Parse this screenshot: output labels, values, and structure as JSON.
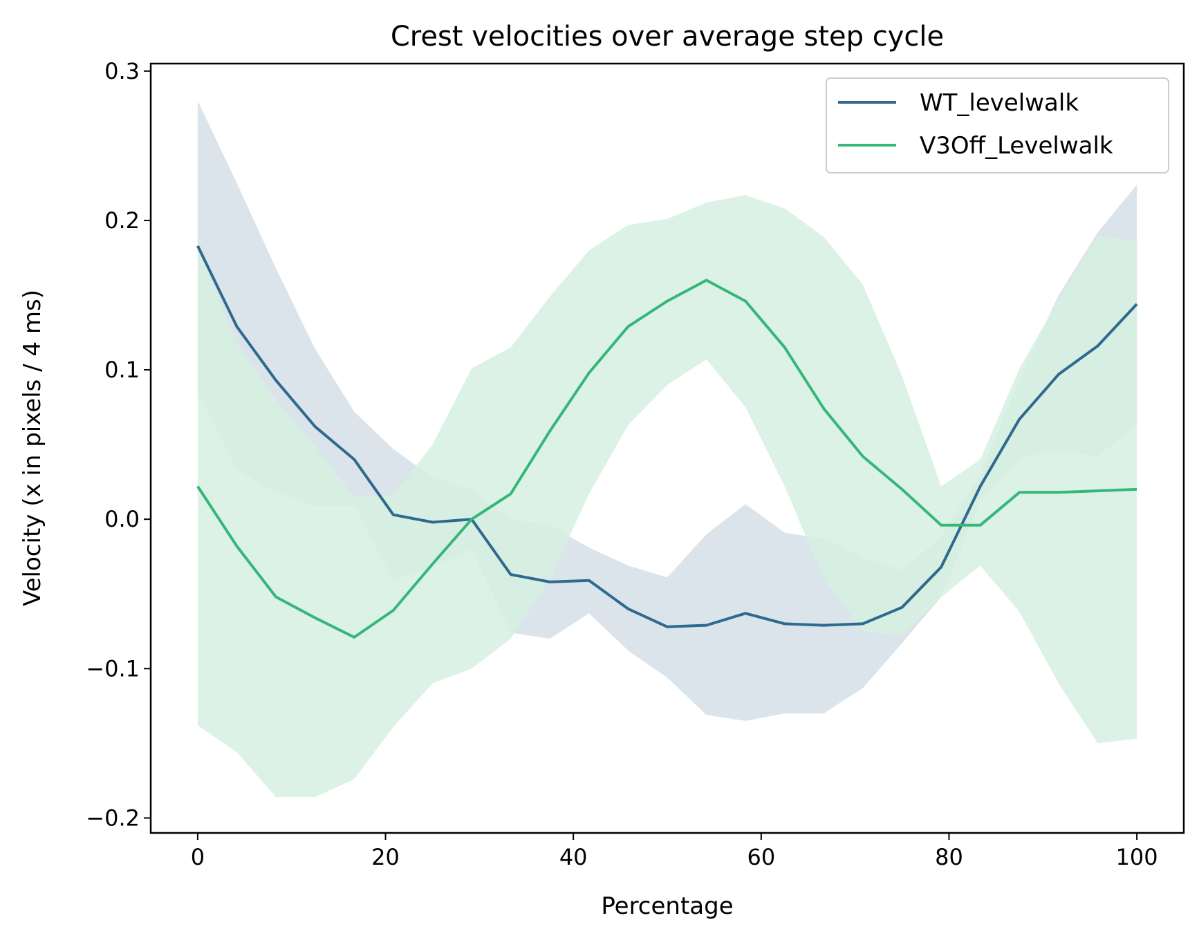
{
  "chart_data": {
    "type": "line",
    "title": "Crest velocities over average step cycle",
    "xlabel": "Percentage",
    "ylabel": "Velocity (x in pixels / 4 ms)",
    "xlim": [
      -5,
      105
    ],
    "ylim": [
      -0.21,
      0.305
    ],
    "x_ticks": [
      0,
      20,
      40,
      60,
      80,
      100
    ],
    "x_tick_labels": [
      "0",
      "20",
      "40",
      "60",
      "80",
      "100"
    ],
    "y_ticks": [
      -0.2,
      -0.1,
      0.0,
      0.1,
      0.2,
      0.3
    ],
    "y_tick_labels": [
      "−0.2",
      "−0.1",
      "0.0",
      "0.1",
      "0.2",
      "0.3"
    ],
    "grid": false,
    "legend_position": "top-right",
    "x": [
      0,
      4.17,
      8.33,
      12.5,
      16.67,
      20.83,
      25,
      29.17,
      33.33,
      37.5,
      41.67,
      45.83,
      50,
      54.17,
      58.33,
      62.5,
      66.67,
      70.83,
      75,
      79.17,
      83.33,
      87.5,
      91.67,
      95.83,
      100
    ],
    "series": [
      {
        "name": "WT_levelwalk",
        "color": "#2e6a8e",
        "band_color": "#d5dfe8",
        "values": [
          0.183,
          0.129,
          0.093,
          0.062,
          0.04,
          0.003,
          -0.002,
          0.0,
          -0.037,
          -0.042,
          -0.041,
          -0.06,
          -0.072,
          -0.071,
          -0.063,
          -0.07,
          -0.071,
          -0.07,
          -0.059,
          -0.032,
          0.022,
          0.067,
          0.097,
          0.116,
          0.144
        ],
        "lower": [
          0.085,
          0.033,
          0.018,
          0.009,
          0.009,
          -0.041,
          -0.032,
          -0.02,
          -0.076,
          -0.08,
          -0.063,
          -0.088,
          -0.106,
          -0.131,
          -0.135,
          -0.13,
          -0.13,
          -0.113,
          -0.083,
          -0.052,
          0.012,
          0.041,
          0.046,
          0.042,
          0.064
        ],
        "upper": [
          0.28,
          0.225,
          0.168,
          0.114,
          0.072,
          0.047,
          0.028,
          0.02,
          0.0,
          -0.004,
          -0.019,
          -0.031,
          -0.039,
          -0.01,
          0.01,
          -0.009,
          -0.013,
          -0.026,
          -0.034,
          -0.012,
          0.03,
          0.094,
          0.15,
          0.192,
          0.224
        ]
      },
      {
        "name": "V3Off_Levelwalk",
        "color": "#35b779",
        "band_color": "#d6f0e2",
        "values": [
          0.022,
          -0.018,
          -0.052,
          -0.066,
          -0.079,
          -0.061,
          -0.03,
          0.0,
          0.017,
          0.059,
          0.098,
          0.129,
          0.146,
          0.16,
          0.146,
          0.115,
          0.074,
          0.042,
          0.02,
          -0.004,
          -0.004,
          0.018,
          0.018,
          0.019,
          0.02
        ],
        "lower": [
          -0.138,
          -0.156,
          -0.186,
          -0.186,
          -0.174,
          -0.139,
          -0.11,
          -0.1,
          -0.08,
          -0.04,
          0.017,
          0.063,
          0.09,
          0.107,
          0.075,
          0.022,
          -0.04,
          -0.075,
          -0.078,
          -0.052,
          -0.031,
          -0.062,
          -0.11,
          -0.15,
          -0.147
        ],
        "upper": [
          0.182,
          0.118,
          0.08,
          0.049,
          0.015,
          0.016,
          0.05,
          0.101,
          0.115,
          0.149,
          0.18,
          0.197,
          0.201,
          0.212,
          0.217,
          0.208,
          0.189,
          0.157,
          0.096,
          0.022,
          0.04,
          0.101,
          0.147,
          0.19,
          0.186
        ]
      }
    ]
  }
}
